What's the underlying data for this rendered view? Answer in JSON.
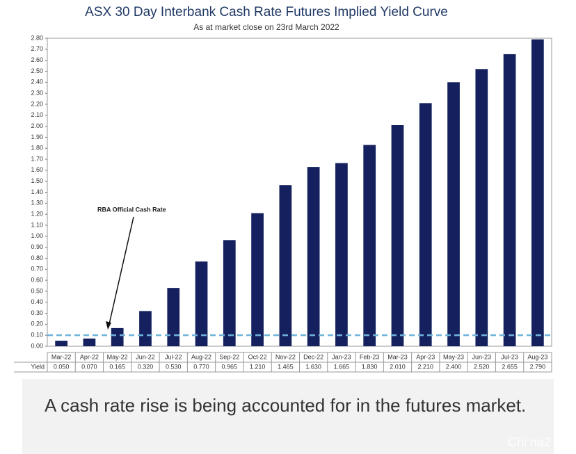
{
  "chart_data": {
    "type": "bar",
    "title": "ASX 30 Day Interbank Cash Rate Futures Implied Yield Curve",
    "subtitle": "As at market close on 23rd March 2022",
    "categories": [
      "Mar-22",
      "Apr-22",
      "May-22",
      "Jun-22",
      "Jul-22",
      "Aug-22",
      "Sep-22",
      "Oct-22",
      "Nov-22",
      "Dec-22",
      "Jan-23",
      "Feb-23",
      "Mar-23",
      "Apr-23",
      "May-23",
      "Jun-23",
      "Jul-23",
      "Aug-23"
    ],
    "table_row_label": "Yield",
    "values": [
      0.05,
      0.07,
      0.165,
      0.32,
      0.53,
      0.77,
      0.965,
      1.21,
      1.465,
      1.63,
      1.665,
      1.83,
      2.01,
      2.21,
      2.4,
      2.52,
      2.655,
      2.79
    ],
    "value_labels": [
      "0.050",
      "0.070",
      "0.165",
      "0.320",
      "0.530",
      "0.770",
      "0.965",
      "1.210",
      "1.465",
      "1.630",
      "1.665",
      "1.830",
      "2.010",
      "2.210",
      "2.400",
      "2.520",
      "2.655",
      "2.790"
    ],
    "color": "#14215e",
    "ylim": [
      0,
      2.8
    ],
    "yticks": [
      {
        "value": 0,
        "label": "0.00"
      },
      {
        "value": 0.1,
        "label": "0.10"
      },
      {
        "value": 0.2,
        "label": "0.20"
      },
      {
        "value": 0.3,
        "label": "0.30"
      },
      {
        "value": 0.4,
        "label": "0.40"
      },
      {
        "value": 0.5,
        "label": "0.50"
      },
      {
        "value": 0.6,
        "label": "0.60"
      },
      {
        "value": 0.7,
        "label": "0.70"
      },
      {
        "value": 0.8,
        "label": "0.80"
      },
      {
        "value": 0.9,
        "label": "0.90"
      },
      {
        "value": 1.0,
        "label": "1.00"
      },
      {
        "value": 1.1,
        "label": "1.10"
      },
      {
        "value": 1.2,
        "label": "1.20"
      },
      {
        "value": 1.3,
        "label": "1.30"
      },
      {
        "value": 1.4,
        "label": "1.40"
      },
      {
        "value": 1.5,
        "label": "1.50"
      },
      {
        "value": 1.6,
        "label": "1.60"
      },
      {
        "value": 1.7,
        "label": "1.70"
      },
      {
        "value": 1.8,
        "label": "1.80"
      },
      {
        "value": 1.9,
        "label": "1.90"
      },
      {
        "value": 2.0,
        "label": "2.00"
      },
      {
        "value": 2.1,
        "label": "2.10"
      },
      {
        "value": 2.2,
        "label": "2.20"
      },
      {
        "value": 2.3,
        "label": "2.30"
      },
      {
        "value": 2.4,
        "label": "2.40"
      },
      {
        "value": 2.5,
        "label": "2.50"
      },
      {
        "value": 2.6,
        "label": "2.60"
      },
      {
        "value": 2.7,
        "label": "2.70"
      },
      {
        "value": 2.8,
        "label": "2.80"
      }
    ],
    "reference_line": {
      "value": 0.1,
      "label": "RBA Official Cash Rate",
      "color": "#6fb3d9"
    }
  },
  "caption": "A cash rate rise is being accounted for in the futures market.",
  "watermark": "Chi na2"
}
